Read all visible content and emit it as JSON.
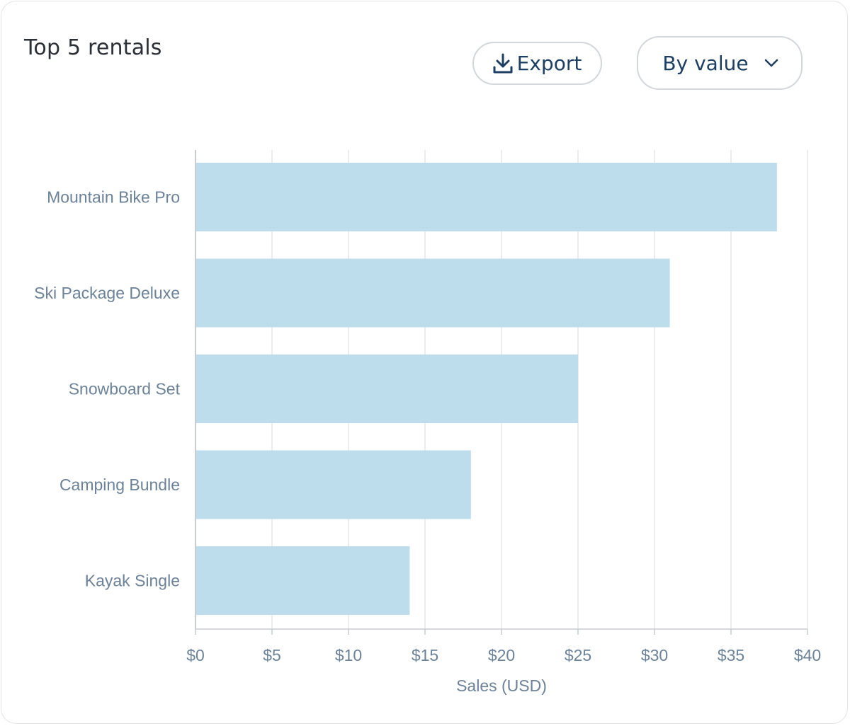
{
  "card": {
    "title": "Top 5 rentals",
    "export_label": "Export",
    "sort_label": "By value",
    "export_icon": "download-icon",
    "sort_icon": "chevron-down-icon"
  },
  "colors": {
    "bar": "#bddcec",
    "grid": "#e3e5e8",
    "axis": "#c9ccd1",
    "label": "#6c8298",
    "button_text": "#1d3f63"
  },
  "chart_data": {
    "type": "bar",
    "orientation": "horizontal",
    "categories": [
      "Mountain Bike Pro",
      "Ski Package Deluxe",
      "Snowboard Set",
      "Camping Bundle",
      "Kayak Single"
    ],
    "values": [
      38,
      31,
      25,
      18,
      14
    ],
    "xlabel": "Sales (USD)",
    "ylabel": "",
    "xlim": [
      0,
      40
    ],
    "xticks": [
      0,
      5,
      10,
      15,
      20,
      25,
      30,
      35,
      40
    ],
    "xtick_labels": [
      "$0",
      "$5",
      "$10",
      "$15",
      "$20",
      "$25",
      "$30",
      "$35",
      "$40"
    ],
    "grid": true,
    "legend": "none"
  }
}
